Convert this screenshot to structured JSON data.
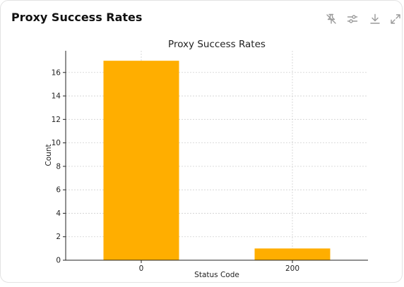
{
  "card": {
    "title": "Proxy Success Rates",
    "toolbar": [
      {
        "icon": "pin-off-icon",
        "label": "Unpin"
      },
      {
        "icon": "sliders-icon",
        "label": "Settings"
      },
      {
        "icon": "download-icon",
        "label": "Download"
      },
      {
        "icon": "expand-icon",
        "label": "Expand"
      }
    ]
  },
  "chart_data": {
    "type": "bar",
    "title": "Proxy Success Rates",
    "xlabel": "Status Code",
    "ylabel": "Count",
    "categories": [
      "0",
      "200"
    ],
    "values": [
      17,
      1
    ],
    "ylim": [
      0,
      17.85
    ],
    "yticks": [
      0,
      2,
      4,
      6,
      8,
      10,
      12,
      14,
      16
    ],
    "grid": true,
    "bar_color": "#FFAE00"
  }
}
